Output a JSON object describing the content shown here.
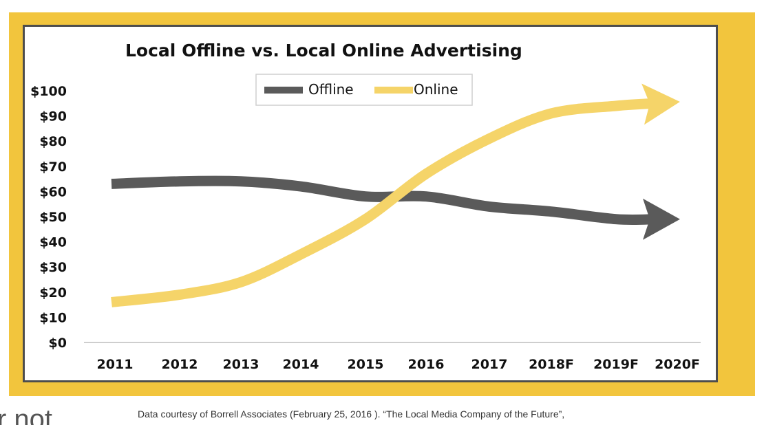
{
  "chart_data": {
    "type": "line",
    "title": "Local Offline vs. Local Online Advertising",
    "xlabel": "",
    "ylabel": "",
    "categories": [
      "2011",
      "2012",
      "2013",
      "2014",
      "2015",
      "2016",
      "2017",
      "2018F",
      "2019F",
      "2020F"
    ],
    "ylim": [
      0,
      100
    ],
    "y_ticks": [
      "$0",
      "$10",
      "$20",
      "$30",
      "$40",
      "$50",
      "$60",
      "$70",
      "$80",
      "$90",
      "$100"
    ],
    "grid": false,
    "legend_position": "top-center",
    "series": [
      {
        "name": "Offline",
        "color": "#5a5a5a",
        "values": [
          63,
          64,
          64,
          62,
          58,
          58,
          54,
          52,
          49,
          49
        ]
      },
      {
        "name": "Online",
        "color": "#f5d469",
        "values": [
          16,
          19,
          24,
          35,
          49,
          67,
          81,
          91,
          94,
          95
        ]
      }
    ]
  },
  "caption": "Data courtesy of Borrell Associates (February 25, 2016 ). “The Local Media Company of the Future”,",
  "stray_text": "r not",
  "colors": {
    "frame": "#f2c53d",
    "border": "#4d4d4d"
  }
}
